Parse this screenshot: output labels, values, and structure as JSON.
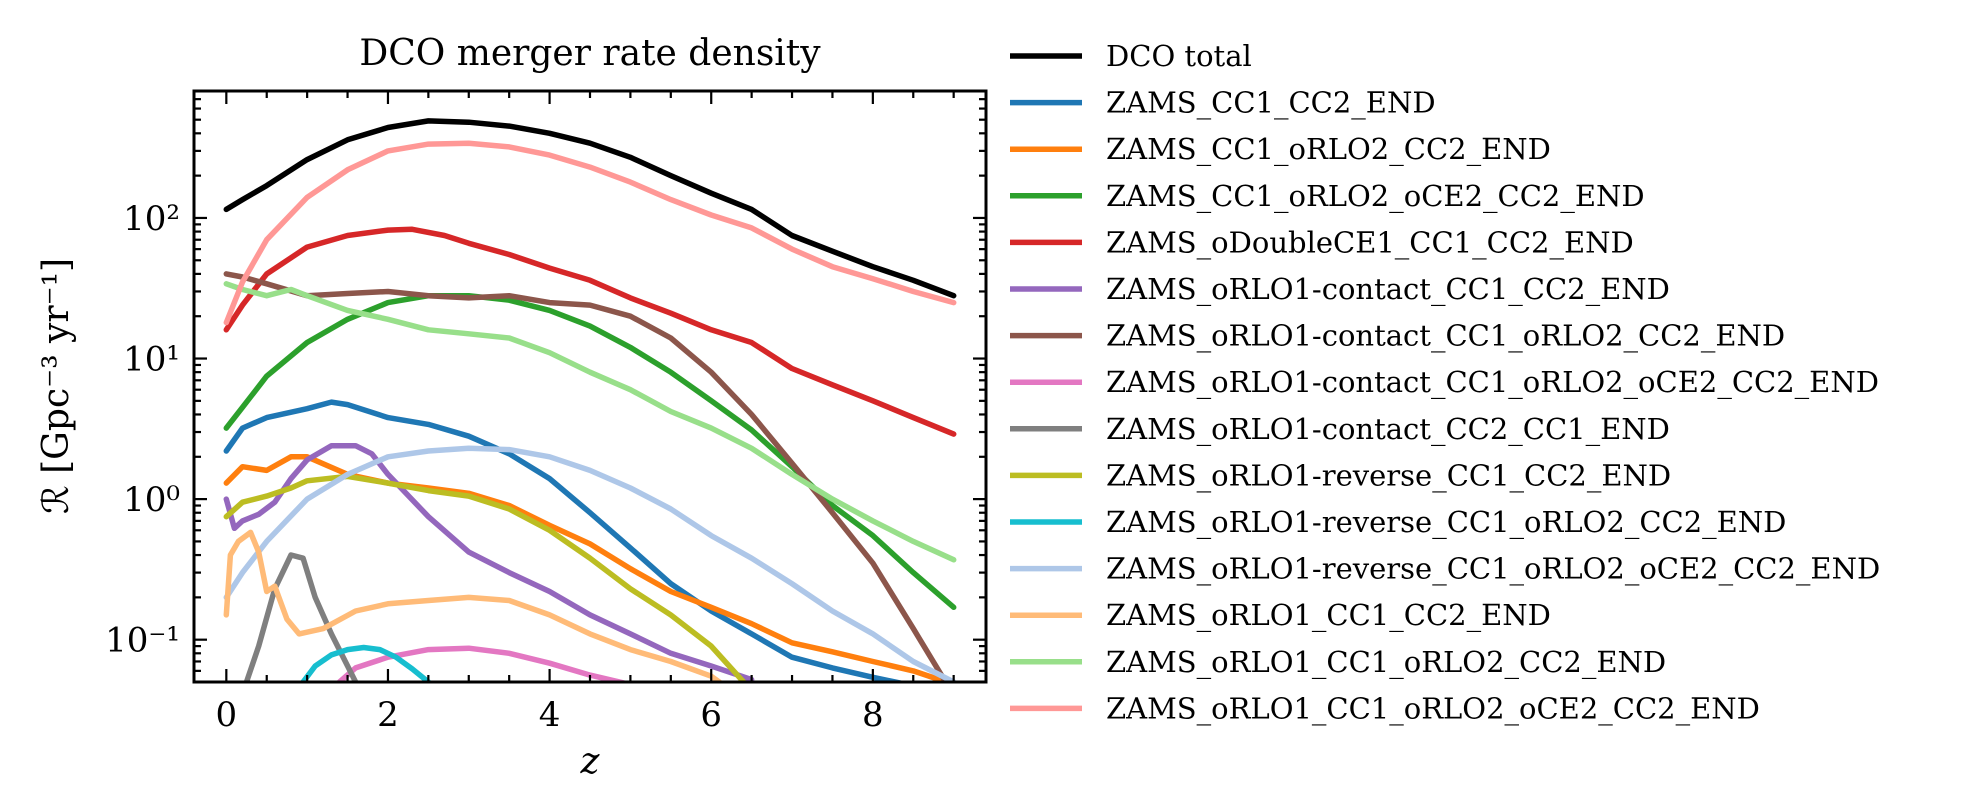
{
  "chart_data": {
    "type": "line",
    "title": "DCO merger rate density",
    "xlabel": "z",
    "ylabel": "ℛ [Gpc⁻³ yr⁻¹]",
    "xlim": [
      -0.4,
      9.4
    ],
    "ylim": [
      0.05,
      800
    ],
    "yscale": "log",
    "xticks": [
      0,
      2,
      4,
      6,
      8
    ],
    "xtick_labels": [
      "0",
      "2",
      "4",
      "6",
      "8"
    ],
    "yticks": [
      0.1,
      1,
      10,
      100
    ],
    "ytick_labels": [
      "10⁻¹",
      "10⁰",
      "10¹",
      "10²"
    ],
    "legend_position": "outside-right",
    "series": [
      {
        "name": "DCO total",
        "color": "#000000",
        "x": [
          0,
          0.2,
          0.5,
          1,
          1.5,
          2,
          2.5,
          3,
          3.5,
          4,
          4.5,
          5,
          5.5,
          6,
          6.5,
          7,
          7.5,
          8,
          8.5,
          9
        ],
        "y": [
          115,
          135,
          170,
          260,
          360,
          440,
          490,
          480,
          450,
          400,
          340,
          270,
          200,
          150,
          115,
          75,
          58,
          45,
          36,
          28
        ]
      },
      {
        "name": "ZAMS_CC1_CC2_END",
        "color": "#1f77b4",
        "x": [
          0,
          0.2,
          0.5,
          1,
          1.3,
          1.5,
          2,
          2.5,
          3,
          3.5,
          4,
          4.5,
          5,
          5.5,
          6,
          6.5,
          7,
          7.5,
          8,
          8.5
        ],
        "y": [
          2.2,
          3.2,
          3.8,
          4.4,
          4.9,
          4.7,
          3.8,
          3.4,
          2.8,
          2.1,
          1.4,
          0.8,
          0.45,
          0.25,
          0.16,
          0.11,
          0.075,
          0.063,
          0.054,
          0.047
        ]
      },
      {
        "name": "ZAMS_CC1_oRLO2_CC2_END",
        "color": "#ff7f0e",
        "x": [
          0,
          0.2,
          0.5,
          0.8,
          1,
          1.5,
          2,
          2.5,
          3,
          3.5,
          4,
          4.5,
          5,
          5.5,
          6,
          6.5,
          7,
          7.5,
          8,
          8.5,
          9
        ],
        "y": [
          1.3,
          1.7,
          1.6,
          2.0,
          2.0,
          1.5,
          1.3,
          1.2,
          1.1,
          0.9,
          0.65,
          0.48,
          0.32,
          0.22,
          0.17,
          0.13,
          0.095,
          0.082,
          0.07,
          0.06,
          0.048
        ]
      },
      {
        "name": "ZAMS_CC1_oRLO2_oCE2_CC2_END",
        "color": "#2ca02c",
        "x": [
          0,
          0.2,
          0.5,
          1,
          1.5,
          2,
          2.5,
          3,
          3.5,
          4,
          4.5,
          5,
          5.5,
          6,
          6.5,
          7,
          7.5,
          8,
          8.5,
          9
        ],
        "y": [
          3.2,
          4.5,
          7.5,
          13,
          19,
          25,
          28,
          28,
          26,
          22,
          17,
          12,
          8,
          5,
          3.1,
          1.7,
          0.9,
          0.55,
          0.3,
          0.17
        ]
      },
      {
        "name": "ZAMS_oDoubleCE1_CC1_CC2_END",
        "color": "#d62728",
        "x": [
          0,
          0.2,
          0.5,
          1,
          1.5,
          2,
          2.3,
          2.7,
          3,
          3.5,
          4,
          4.5,
          5,
          5.5,
          6,
          6.5,
          7,
          7.5,
          8,
          8.5,
          9
        ],
        "y": [
          16,
          24,
          40,
          62,
          75,
          82,
          83,
          75,
          66,
          55,
          44,
          36,
          27,
          21,
          16,
          13,
          8.5,
          6.5,
          5,
          3.8,
          2.9
        ]
      },
      {
        "name": "ZAMS_oRLO1-contact_CC1_CC2_END",
        "color": "#9467bd",
        "x": [
          0,
          0.1,
          0.2,
          0.4,
          0.6,
          0.8,
          1,
          1.3,
          1.6,
          1.8,
          2,
          2.5,
          3,
          3.5,
          4,
          4.5,
          5,
          5.5,
          6,
          6.5
        ],
        "y": [
          1.0,
          0.62,
          0.7,
          0.78,
          0.95,
          1.4,
          1.9,
          2.4,
          2.4,
          2.1,
          1.5,
          0.75,
          0.42,
          0.3,
          0.22,
          0.15,
          0.11,
          0.08,
          0.065,
          0.052
        ]
      },
      {
        "name": "ZAMS_oRLO1-contact_CC1_oRLO2_CC2_END",
        "color": "#8c564b",
        "x": [
          0,
          0.2,
          0.5,
          1,
          1.5,
          2,
          2.5,
          3,
          3.5,
          4,
          4.5,
          5,
          5.5,
          6,
          6.5,
          7,
          7.5,
          8,
          8.5,
          8.9
        ],
        "y": [
          40,
          38,
          34,
          28,
          29,
          30,
          28,
          27,
          28,
          25,
          24,
          20,
          14,
          8,
          4,
          1.8,
          0.8,
          0.35,
          0.12,
          0.05
        ]
      },
      {
        "name": "ZAMS_oRLO1-contact_CC1_oRLO2_oCE2_CC2_END",
        "color": "#e377c2",
        "x": [
          1.4,
          1.6,
          2,
          2.5,
          3,
          3.5,
          4,
          4.5,
          5
        ],
        "y": [
          0.05,
          0.063,
          0.075,
          0.085,
          0.087,
          0.08,
          0.068,
          0.056,
          0.048
        ]
      },
      {
        "name": "ZAMS_oRLO1-contact_CC2_CC1_END",
        "color": "#7f7f7f",
        "x": [
          0.25,
          0.4,
          0.6,
          0.8,
          0.95,
          1.1,
          1.3,
          1.5,
          1.6
        ],
        "y": [
          0.05,
          0.09,
          0.23,
          0.4,
          0.38,
          0.2,
          0.11,
          0.065,
          0.05
        ]
      },
      {
        "name": "ZAMS_oRLO1-reverse_CC1_CC2_END",
        "color": "#bcbd22",
        "x": [
          0,
          0.2,
          0.5,
          0.8,
          1,
          1.5,
          2,
          2.5,
          3,
          3.5,
          4,
          4.5,
          5,
          5.5,
          6,
          6.4
        ],
        "y": [
          0.75,
          0.95,
          1.05,
          1.2,
          1.35,
          1.45,
          1.3,
          1.15,
          1.05,
          0.85,
          0.6,
          0.38,
          0.23,
          0.15,
          0.09,
          0.05
        ]
      },
      {
        "name": "ZAMS_oRLO1-reverse_CC1_oRLO2_CC2_END",
        "color": "#17becf",
        "x": [
          0.95,
          1.1,
          1.3,
          1.5,
          1.7,
          1.9,
          2.1,
          2.3,
          2.5
        ],
        "y": [
          0.05,
          0.065,
          0.078,
          0.085,
          0.088,
          0.085,
          0.075,
          0.062,
          0.05
        ]
      },
      {
        "name": "ZAMS_oRLO1-reverse_CC1_oRLO2_oCE2_CC2_END",
        "color": "#aec7e8",
        "x": [
          0,
          0.2,
          0.5,
          1,
          1.5,
          2,
          2.5,
          3,
          3.5,
          4,
          4.5,
          5,
          5.5,
          6,
          6.5,
          7,
          7.5,
          8,
          8.5,
          9
        ],
        "y": [
          0.2,
          0.3,
          0.5,
          1.0,
          1.5,
          2.0,
          2.2,
          2.3,
          2.25,
          2.0,
          1.6,
          1.2,
          0.85,
          0.55,
          0.38,
          0.25,
          0.16,
          0.11,
          0.07,
          0.05
        ]
      },
      {
        "name": "ZAMS_oRLO1_CC1_CC2_END",
        "color": "#ffbb78",
        "x": [
          0,
          0.05,
          0.15,
          0.3,
          0.4,
          0.5,
          0.6,
          0.75,
          0.9,
          1.2,
          1.6,
          2,
          2.5,
          3,
          3.5,
          4,
          4.5,
          5,
          5.5,
          6,
          6.1
        ],
        "y": [
          0.15,
          0.4,
          0.5,
          0.58,
          0.42,
          0.22,
          0.24,
          0.14,
          0.11,
          0.12,
          0.16,
          0.18,
          0.19,
          0.2,
          0.19,
          0.15,
          0.11,
          0.085,
          0.07,
          0.055,
          0.05
        ]
      },
      {
        "name": "ZAMS_oRLO1_CC1_oRLO2_CC2_END",
        "color": "#98df8a",
        "x": [
          0,
          0.2,
          0.5,
          0.8,
          1,
          1.5,
          2,
          2.5,
          3,
          3.5,
          4,
          4.5,
          5,
          5.5,
          6,
          6.5,
          7,
          7.5,
          8,
          8.5,
          9
        ],
        "y": [
          34,
          31,
          28,
          31,
          28,
          22,
          19,
          16,
          15,
          14,
          11,
          8,
          6,
          4.2,
          3.2,
          2.3,
          1.5,
          1.0,
          0.7,
          0.5,
          0.37
        ]
      },
      {
        "name": "ZAMS_oRLO1_CC1_oRLO2_oCE2_CC2_END",
        "color": "#ff9896",
        "x": [
          0,
          0.2,
          0.5,
          1,
          1.5,
          2,
          2.5,
          3,
          3.5,
          4,
          4.5,
          5,
          5.5,
          6,
          6.5,
          7,
          7.5,
          8,
          8.5,
          9
        ],
        "y": [
          18,
          35,
          70,
          140,
          220,
          300,
          335,
          340,
          320,
          280,
          230,
          180,
          135,
          105,
          85,
          60,
          45,
          37,
          30,
          25
        ]
      }
    ]
  }
}
